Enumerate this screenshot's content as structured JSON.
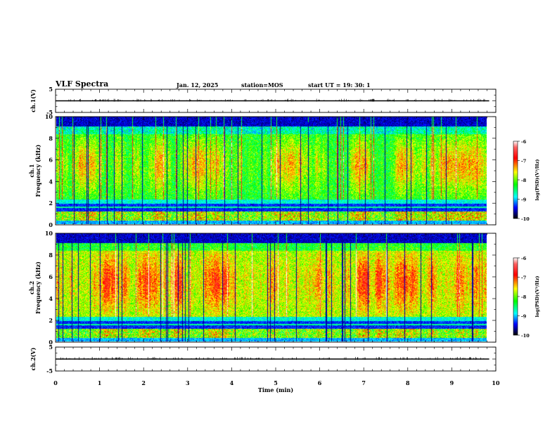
{
  "header": {
    "title": "VLF Spectra",
    "date": "Jan. 12, 2025",
    "station": "station=MOS",
    "start": "start UT =  19: 30: 1"
  },
  "chart_data": [
    {
      "type": "line",
      "panel": "ch1-waveform",
      "ylabel": "ch.1(V)",
      "ylim": [
        -5,
        5
      ],
      "yticks": [
        "5",
        "-5"
      ],
      "x": [
        0,
        10
      ],
      "values": [
        0,
        0
      ],
      "color": "#000000"
    },
    {
      "type": "heatmap",
      "panel": "ch1-spectrogram",
      "ylabel_top": "ch.1",
      "ylabel": "Frequency (kHz)",
      "ylim": [
        0,
        10
      ],
      "yticks": [
        "0",
        "2",
        "4",
        "6",
        "8",
        "10"
      ],
      "xlim": [
        0,
        10
      ],
      "colorbar": {
        "label": "log(PSD)(V²/Hz)",
        "range": [
          -10,
          -6
        ],
        "ticks": [
          "-6",
          "-7",
          "-8",
          "-9",
          "-10"
        ]
      }
    },
    {
      "type": "heatmap",
      "panel": "ch2-spectrogram",
      "ylabel_top": "ch.2",
      "ylabel": "Frequency (kHz)",
      "ylim": [
        0,
        10
      ],
      "yticks": [
        "0",
        "2",
        "4",
        "6",
        "8",
        "10"
      ],
      "xlim": [
        0,
        10
      ],
      "colorbar": {
        "label": "log(PSD)(V²/Hz)",
        "range": [
          -10,
          -6
        ],
        "ticks": [
          "-6",
          "-7",
          "-8",
          "-9",
          "-10"
        ]
      }
    },
    {
      "type": "line",
      "panel": "ch2-waveform",
      "ylabel": "ch.2(V)",
      "ylim": [
        -5,
        5
      ],
      "yticks": [
        "5",
        "-5"
      ],
      "x": [
        0,
        10
      ],
      "values": [
        0,
        0
      ],
      "color": "#000000"
    }
  ],
  "x_axis": {
    "label": "Time (min)",
    "range": [
      0,
      10
    ],
    "ticks": [
      "0",
      "1",
      "2",
      "3",
      "4",
      "5",
      "6",
      "7",
      "8",
      "9",
      "10"
    ]
  },
  "colors": {
    "colormap": [
      "#ffffff",
      "#ff0000",
      "#ffff00",
      "#00ff00",
      "#00ffff",
      "#0000ff",
      "#000000"
    ]
  }
}
